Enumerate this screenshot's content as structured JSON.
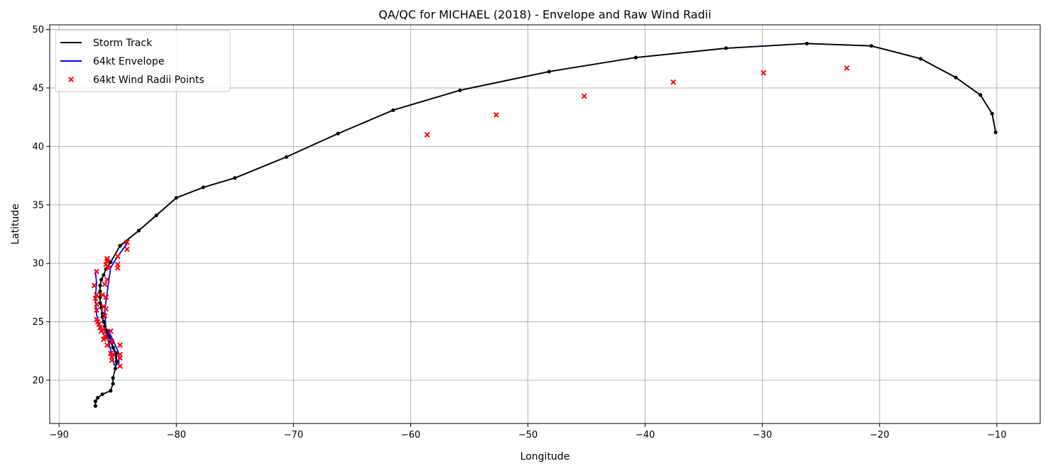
{
  "chart_data": {
    "type": "line",
    "title": "QA/QC for MICHAEL (2018) - Envelope and Raw Wind Radii",
    "xlabel": "Longitude",
    "ylabel": "Latitude",
    "xlim": [
      -90.8,
      -6.3
    ],
    "ylim": [
      16.3,
      50.4
    ],
    "grid": true,
    "legend_position": "top-left",
    "xticks": [
      -90,
      -80,
      -70,
      -60,
      -50,
      -40,
      -30,
      -20,
      -10
    ],
    "yticks": [
      20,
      25,
      30,
      35,
      40,
      45,
      50
    ],
    "xtick_labels": [
      "−90",
      "−80",
      "−70",
      "−60",
      "−50",
      "−40",
      "−30",
      "−20",
      "−10"
    ],
    "ytick_labels": [
      "20",
      "25",
      "30",
      "35",
      "40",
      "45",
      "50"
    ],
    "colors": {
      "track": "#000000",
      "envelope": "#0000ff",
      "radii": "#ff0000",
      "grid": "#b0b0b0"
    },
    "series": [
      {
        "name": "Storm Track",
        "kind": "line-markers",
        "x": [
          -86.9,
          -86.9,
          -86.7,
          -86.3,
          -85.6,
          -85.4,
          -85.4,
          -85.2,
          -85.1,
          -85.1,
          -85.4,
          -85.6,
          -85.8,
          -86.0,
          -86.1,
          -86.2,
          -86.3,
          -86.3,
          -86.4,
          -86.5,
          -86.5,
          -86.5,
          -86.5,
          -86.4,
          -86.2,
          -86.0,
          -85.6,
          -84.8,
          -83.2,
          -81.7,
          -80.0,
          -77.7,
          -75.0,
          -70.6,
          -66.2,
          -61.5,
          -55.8,
          -48.2,
          -40.8,
          -33.1,
          -26.2,
          -20.7,
          -16.5,
          -13.5,
          -11.4,
          -10.4,
          -10.1
        ],
        "y": [
          17.8,
          18.2,
          18.5,
          18.8,
          19.1,
          19.7,
          20.2,
          21.0,
          21.6,
          22.3,
          22.8,
          23.3,
          23.8,
          24.3,
          24.6,
          25.0,
          25.4,
          25.7,
          26.2,
          26.6,
          27.1,
          27.6,
          28.1,
          28.6,
          29.0,
          29.5,
          30.1,
          31.5,
          32.8,
          34.1,
          35.6,
          36.5,
          37.3,
          39.1,
          41.1,
          43.1,
          44.8,
          46.4,
          47.6,
          48.4,
          48.8,
          48.6,
          47.5,
          45.9,
          44.4,
          42.8,
          41.2
        ]
      },
      {
        "name": "64kt Envelope",
        "kind": "line",
        "x": [
          -86.2,
          -85.8,
          -85.3,
          -84.9,
          -84.9,
          -85.3,
          -85.6,
          -86.0,
          -86.1,
          -85.8,
          -85.6,
          -85.2,
          -84.2,
          -86.9,
          -86.8,
          -86.9,
          -86.8,
          -86.6,
          -86.3,
          -85.9,
          -85.6,
          -85.4,
          -85.2,
          -85.1,
          -84.8,
          -83.2,
          -81.7,
          -80.0,
          -77.7,
          -75.0,
          -70.6,
          -66.2,
          -61.5,
          -55.8,
          -48.2,
          -40.8,
          -33.1,
          -26.2,
          -20.7,
          -16.5,
          -13.5,
          -11.4,
          -10.4,
          -10.1
        ],
        "y": [
          24.0,
          24.3,
          23.2,
          22.3,
          21.4,
          21.3,
          22.6,
          24.1,
          26.0,
          28.2,
          29.6,
          30.3,
          31.7,
          29.3,
          28.3,
          27.1,
          25.6,
          24.8,
          24.4,
          24.2,
          23.6,
          22.8,
          22.2,
          21.3,
          31.5,
          32.8,
          34.1,
          35.6,
          36.5,
          37.3,
          39.1,
          41.1,
          43.1,
          44.8,
          46.4,
          47.6,
          48.4,
          48.8,
          48.6,
          47.5,
          45.9,
          44.4,
          42.8,
          41.2
        ],
        "breaks_after_index": [
          12,
          23
        ]
      },
      {
        "name": "64kt Wind Radii Points",
        "kind": "markers-x",
        "x": [
          -58.6,
          -52.7,
          -45.2,
          -37.6,
          -29.9,
          -22.8,
          -84.2,
          -84.2,
          -85.0,
          -85.0,
          -85.0,
          -85.9,
          -85.9,
          -86.0,
          -85.8,
          -85.9,
          -86.1,
          -86.3,
          -86.0,
          -86.2,
          -86.0,
          -86.1,
          -86.8,
          -87.0,
          -86.8,
          -86.9,
          -86.8,
          -86.8,
          -86.8,
          -86.7,
          -86.6,
          -86.5,
          -86.4,
          -86.2,
          -86.1,
          -86.0,
          -85.6,
          -86.2,
          -85.9,
          -85.5,
          -85.4,
          -85.5,
          -85.6,
          -85.5,
          -84.8,
          -84.8,
          -84.8,
          -84.8
        ],
        "y": [
          41.0,
          42.7,
          44.3,
          45.5,
          46.3,
          46.7,
          31.8,
          31.2,
          30.6,
          29.9,
          29.6,
          30.4,
          30.2,
          29.9,
          29.6,
          28.6,
          28.2,
          27.3,
          27.1,
          26.3,
          26.1,
          25.5,
          29.3,
          28.1,
          27.3,
          27.0,
          26.5,
          26.0,
          25.2,
          25.0,
          24.8,
          24.5,
          24.2,
          24.3,
          23.8,
          23.6,
          24.2,
          23.5,
          23.0,
          23.3,
          22.2,
          22.0,
          22.3,
          21.7,
          23.0,
          22.2,
          21.9,
          21.2
        ]
      }
    ]
  }
}
